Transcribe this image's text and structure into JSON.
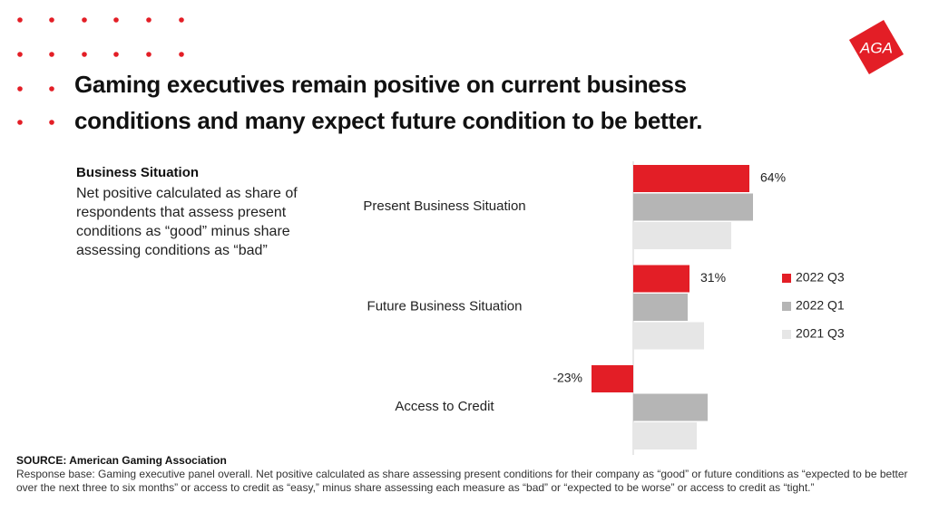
{
  "header": {
    "title": [
      "Gaming executives remain positive on current business",
      "conditions and many expect future condition to be better."
    ],
    "logo": "AGA"
  },
  "chart_data": {
    "type": "bar",
    "orientation": "horizontal",
    "subtitle": "Business Situation",
    "description": "Net positive calculated as share of respondents that assess present conditions as “good” minus share assessing conditions as “bad”",
    "categories": [
      "Present Business Situation",
      "Future Business Situation",
      "Access to Credit"
    ],
    "series": [
      {
        "name": "2022 Q3",
        "color": "#e31e26",
        "values": [
          64,
          31,
          -23
        ],
        "value_labels": [
          "64%",
          "31%",
          "-23%"
        ]
      },
      {
        "name": "2022 Q1",
        "color": "#b5b5b5",
        "values": [
          66,
          30,
          41
        ]
      },
      {
        "name": "2021 Q3",
        "color": "#e6e6e6",
        "values": [
          54,
          39,
          35
        ]
      }
    ]
  },
  "footer": {
    "source": "SOURCE: American Gaming Association",
    "note": "Response base: Gaming executive panel overall. Net positive calculated as share assessing present conditions for their company as “good” or future conditions as “expected to be better over the next three to six months” or access to credit as “easy,” minus share assessing each measure as “bad” or “expected to be worse” or access to credit as “tight.”"
  }
}
